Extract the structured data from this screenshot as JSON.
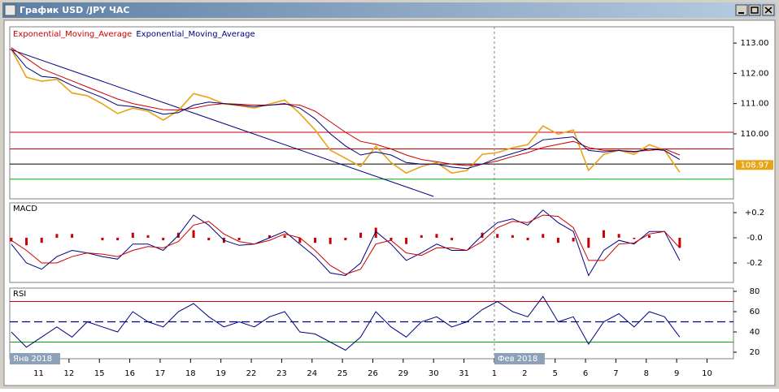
{
  "window": {
    "title": "График USD /JPY ЧАС"
  },
  "chart_data": [
    {
      "type": "line",
      "xlim": [
        -0.95,
        22.87
      ],
      "xticks": [
        {
          "value": 0,
          "label": "11"
        },
        {
          "value": 1,
          "label": "12"
        },
        {
          "value": 2,
          "label": "15"
        },
        {
          "value": 3,
          "label": "16"
        },
        {
          "value": 4,
          "label": "17"
        },
        {
          "value": 5,
          "label": "18"
        },
        {
          "value": 6,
          "label": "19"
        },
        {
          "value": 7,
          "label": "22"
        },
        {
          "value": 8,
          "label": "23"
        },
        {
          "value": 9,
          "label": "24"
        },
        {
          "value": 10,
          "label": "25"
        },
        {
          "value": 11,
          "label": "26"
        },
        {
          "value": 12,
          "label": "29"
        },
        {
          "value": 13,
          "label": "30"
        },
        {
          "value": 14,
          "label": "31"
        },
        {
          "value": 15,
          "label": "1"
        },
        {
          "value": 16,
          "label": "2"
        },
        {
          "value": 17,
          "label": "5"
        },
        {
          "value": 18,
          "label": "6"
        },
        {
          "value": 19,
          "label": "7"
        },
        {
          "value": 20,
          "label": "8"
        },
        {
          "value": 21,
          "label": "9"
        },
        {
          "value": 22,
          "label": "10"
        }
      ],
      "month_labels": [
        {
          "x": -0.95,
          "label": "Янв 2018"
        },
        {
          "x": 15,
          "label": "Фев 2018"
        }
      ],
      "ylim": [
        107.85,
        113.54
      ],
      "yticks": [
        {
          "value": 113,
          "label": "113.00"
        },
        {
          "value": 112,
          "label": "112.00"
        },
        {
          "value": 111,
          "label": "111.00"
        },
        {
          "value": 110,
          "label": "110.00"
        }
      ],
      "x": [
        -0.9,
        -0.4,
        0.1,
        0.6,
        1.1,
        1.6,
        2.1,
        2.6,
        3.1,
        3.6,
        4.1,
        4.6,
        5.1,
        5.6,
        6.1,
        6.6,
        7.1,
        7.6,
        8.1,
        8.6,
        9.1,
        9.6,
        10.1,
        10.6,
        11.1,
        11.6,
        12.1,
        12.6,
        13.1,
        13.6,
        14.1,
        14.6,
        15.1,
        15.6,
        16.1,
        16.6,
        17.1,
        17.6,
        18.1,
        18.6,
        19.1,
        19.6,
        20.1,
        20.6,
        21.1
      ],
      "price": {
        "color": "#e8a317",
        "values": [
          112.8,
          111.87,
          111.74,
          111.8,
          111.35,
          111.26,
          110.99,
          110.67,
          110.85,
          110.75,
          110.45,
          110.77,
          111.33,
          111.2,
          110.99,
          110.93,
          110.85,
          110.99,
          111.12,
          110.67,
          110.13,
          109.46,
          109.19,
          108.92,
          109.59,
          109.05,
          108.7,
          108.92,
          109.05,
          108.7,
          108.79,
          109.32,
          109.38,
          109.54,
          109.64,
          110.26,
          109.99,
          110.13,
          108.79,
          109.32,
          109.46,
          109.32,
          109.64,
          109.46,
          108.73
        ]
      },
      "last_price": 108.97,
      "series": [
        {
          "name": "Exponential_Moving_Average",
          "color": "#cc0000",
          "values": [
            112.85,
            112.5,
            112.15,
            111.95,
            111.75,
            111.55,
            111.35,
            111.15,
            111.0,
            110.9,
            110.8,
            110.78,
            110.85,
            110.95,
            111.0,
            110.98,
            110.95,
            110.95,
            110.98,
            110.95,
            110.75,
            110.4,
            110.05,
            109.75,
            109.65,
            109.5,
            109.3,
            109.15,
            109.08,
            109.0,
            108.95,
            109.0,
            109.1,
            109.25,
            109.38,
            109.55,
            109.65,
            109.75,
            109.55,
            109.45,
            109.45,
            109.42,
            109.45,
            109.5,
            109.3
          ]
        },
        {
          "name": "Exponential_Moving_Average",
          "color": "#000080",
          "values": [
            112.8,
            112.2,
            111.9,
            111.85,
            111.6,
            111.4,
            111.2,
            110.95,
            110.9,
            110.8,
            110.65,
            110.7,
            110.95,
            111.05,
            111.0,
            110.95,
            110.9,
            110.95,
            111.0,
            110.85,
            110.5,
            110.0,
            109.6,
            109.3,
            109.4,
            109.3,
            109.05,
            109.0,
            109.0,
            108.9,
            108.85,
            109.0,
            109.2,
            109.35,
            109.5,
            109.8,
            109.85,
            109.9,
            109.45,
            109.4,
            109.45,
            109.4,
            109.5,
            109.45,
            109.15
          ]
        }
      ],
      "hlines": [
        {
          "value": 110.05,
          "color": "#cc0000"
        },
        {
          "value": 109.5,
          "color": "#cc0000"
        },
        {
          "value": 109.0,
          "color": "#000000"
        },
        {
          "value": 108.5,
          "color": "#00aa00"
        }
      ],
      "trendline": {
        "x": [
          -0.95,
          13.0
        ],
        "y": [
          112.8,
          107.93
        ],
        "color": "#000080"
      }
    },
    {
      "type": "macd",
      "title": "MACD",
      "ylim": [
        -0.355,
        0.277
      ],
      "yticks": [
        {
          "value": 0.2,
          "label": "+0.2"
        },
        {
          "value": 0,
          "label": "-0.0"
        },
        {
          "value": -0.2,
          "label": "-0.2"
        }
      ],
      "x": [
        -0.9,
        -0.4,
        0.1,
        0.6,
        1.1,
        1.6,
        2.1,
        2.6,
        3.1,
        3.6,
        4.1,
        4.6,
        5.1,
        5.6,
        6.1,
        6.6,
        7.1,
        7.6,
        8.1,
        8.6,
        9.1,
        9.6,
        10.1,
        10.6,
        11.1,
        11.6,
        12.1,
        12.6,
        13.1,
        13.6,
        14.1,
        14.6,
        15.1,
        15.6,
        16.1,
        16.6,
        17.1,
        17.6,
        18.1,
        18.6,
        19.1,
        19.6,
        20.1,
        20.6,
        21.1
      ],
      "histogram": {
        "color": "#cc0000",
        "values": [
          -0.03,
          -0.06,
          -0.04,
          0.03,
          0.03,
          0.0,
          -0.02,
          -0.02,
          0.04,
          0.02,
          -0.02,
          0.04,
          0.06,
          -0.02,
          -0.04,
          -0.02,
          0.0,
          0.02,
          0.02,
          -0.04,
          -0.04,
          -0.05,
          -0.02,
          0.04,
          0.08,
          -0.02,
          -0.05,
          0.02,
          0.03,
          -0.02,
          0.0,
          0.04,
          0.03,
          0.02,
          -0.02,
          0.03,
          -0.04,
          -0.03,
          -0.08,
          0.06,
          0.03,
          -0.01,
          0.02,
          0.0,
          -0.08
        ]
      },
      "lines": [
        {
          "color": "#000080",
          "values": [
            -0.05,
            -0.2,
            -0.25,
            -0.15,
            -0.1,
            -0.12,
            -0.15,
            -0.17,
            -0.05,
            -0.05,
            -0.1,
            0.02,
            0.18,
            0.1,
            -0.02,
            -0.06,
            -0.05,
            0.0,
            0.05,
            -0.05,
            -0.15,
            -0.28,
            -0.3,
            -0.2,
            0.05,
            -0.05,
            -0.18,
            -0.12,
            -0.05,
            -0.1,
            -0.1,
            0.02,
            0.12,
            0.15,
            0.1,
            0.22,
            0.12,
            0.05,
            -0.3,
            -0.1,
            -0.02,
            -0.05,
            0.05,
            0.05,
            -0.18
          ]
        },
        {
          "color": "#cc0000",
          "values": [
            -0.02,
            -0.1,
            -0.2,
            -0.2,
            -0.15,
            -0.12,
            -0.13,
            -0.15,
            -0.1,
            -0.07,
            -0.08,
            -0.03,
            0.1,
            0.13,
            0.03,
            -0.03,
            -0.05,
            -0.02,
            0.03,
            0.0,
            -0.1,
            -0.22,
            -0.29,
            -0.25,
            -0.05,
            -0.02,
            -0.12,
            -0.14,
            -0.08,
            -0.08,
            -0.1,
            -0.03,
            0.08,
            0.13,
            0.12,
            0.18,
            0.17,
            0.08,
            -0.18,
            -0.18,
            -0.05,
            -0.04,
            0.03,
            0.05,
            -0.08
          ]
        }
      ]
    },
    {
      "type": "line",
      "title": "RSI",
      "ylim": [
        13.6,
        83.2
      ],
      "yticks": [
        80,
        60,
        40,
        20
      ],
      "x": [
        -0.9,
        -0.4,
        0.1,
        0.6,
        1.1,
        1.6,
        2.1,
        2.6,
        3.1,
        3.6,
        4.1,
        4.6,
        5.1,
        5.6,
        6.1,
        6.6,
        7.1,
        7.6,
        8.1,
        8.6,
        9.1,
        9.6,
        10.1,
        10.6,
        11.1,
        11.6,
        12.1,
        12.6,
        13.1,
        13.6,
        14.1,
        14.6,
        15.1,
        15.6,
        16.1,
        16.6,
        17.1,
        17.6,
        18.1,
        18.6,
        19.1,
        19.6,
        20.1,
        20.6,
        21.1
      ],
      "lines": [
        {
          "color": "#000080",
          "values": [
            40,
            25,
            35,
            45,
            35,
            50,
            45,
            40,
            60,
            50,
            45,
            60,
            68,
            55,
            45,
            50,
            45,
            55,
            60,
            40,
            38,
            30,
            22,
            35,
            60,
            45,
            35,
            50,
            55,
            45,
            50,
            62,
            70,
            60,
            55,
            75,
            50,
            55,
            28,
            50,
            58,
            45,
            60,
            55,
            35
          ]
        }
      ],
      "hlines": [
        {
          "value": 70,
          "color": "#cc0000"
        },
        {
          "value": 50,
          "color": "#000080",
          "dash": true
        },
        {
          "value": 30,
          "color": "#00aa00"
        }
      ]
    }
  ]
}
